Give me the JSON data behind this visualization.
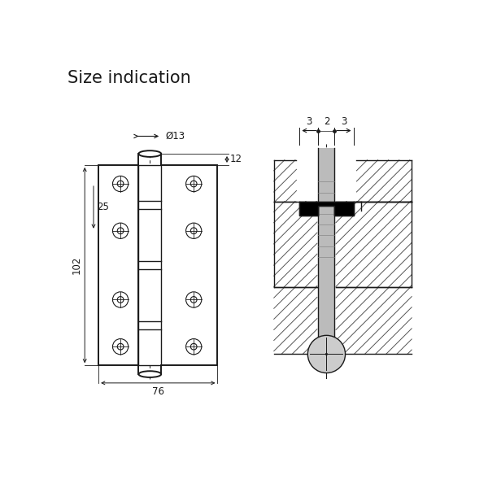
{
  "title": "Size indication",
  "title_fontsize": 15,
  "bg_color": "#ffffff",
  "line_color": "#1a1a1a",
  "gray_fill": "#bbbbbb",
  "annotations": {
    "phi13": "Ø13",
    "dim12": "12",
    "dim25": "25",
    "dim102": "102",
    "dim76": "76",
    "dim3_left": "3",
    "dim3_right": "3",
    "dim2": "2"
  }
}
